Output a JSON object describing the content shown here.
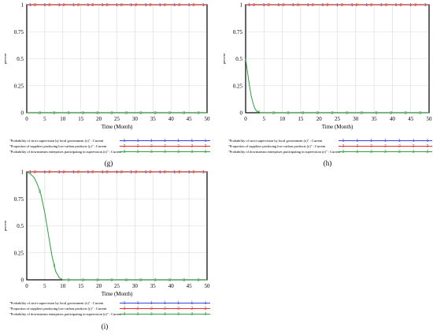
{
  "chart_data": [
    {
      "type": "line",
      "panel_label": "(g)",
      "xlabel": "Time (Month)",
      "ylabel": "percent",
      "xlim": [
        0,
        50
      ],
      "ylim": [
        0,
        1
      ],
      "x_ticks": [
        "0",
        "5",
        "10",
        "15",
        "20",
        "25",
        "30",
        "35",
        "40",
        "45",
        "50"
      ],
      "y_ticks": [
        "0",
        "0.25",
        "0.5",
        "0.75",
        "1"
      ],
      "grid": true,
      "legend_position": "bottom",
      "series": [
        {
          "name": "\"Probability of strict supervision by local government (x)\" : Current",
          "marker": "1",
          "color": "#3344dd",
          "x": [
            0,
            5,
            10,
            15,
            20,
            25,
            30,
            35,
            40,
            45,
            50
          ],
          "y": [
            1,
            1,
            1,
            1,
            1,
            1,
            1,
            1,
            1,
            1,
            1
          ]
        },
        {
          "name": "\"Proportion of suppliers producing low-carbon products (y)\" : Current",
          "marker": "2",
          "color": "#e03030",
          "x": [
            0,
            5,
            10,
            15,
            20,
            25,
            30,
            35,
            40,
            45,
            50
          ],
          "y": [
            1,
            1,
            1,
            1,
            1,
            1,
            1,
            1,
            1,
            1,
            1
          ]
        },
        {
          "name": "\"Probability of downstream enterprises participating in supervision (z)\" : Current",
          "marker": "3",
          "color": "#2e9e3e",
          "x": [
            0,
            5,
            10,
            15,
            20,
            25,
            30,
            35,
            40,
            45,
            50
          ],
          "y": [
            0,
            0,
            0,
            0,
            0,
            0,
            0,
            0,
            0,
            0,
            0
          ]
        }
      ]
    },
    {
      "type": "line",
      "panel_label": "(h)",
      "xlabel": "Time (Month)",
      "ylabel": "percent",
      "xlim": [
        0,
        50
      ],
      "ylim": [
        0,
        1
      ],
      "x_ticks": [
        "0",
        "5",
        "10",
        "15",
        "20",
        "25",
        "30",
        "35",
        "40",
        "45",
        "50"
      ],
      "y_ticks": [
        "0",
        "0.25",
        "0.5",
        "0.75",
        "1"
      ],
      "grid": true,
      "legend_position": "bottom",
      "series": [
        {
          "name": "\"Probability of strict supervision by local government (x)\" : Current",
          "marker": "1",
          "color": "#3344dd",
          "x": [
            0,
            5,
            10,
            15,
            20,
            25,
            30,
            35,
            40,
            45,
            50
          ],
          "y": [
            1,
            1,
            1,
            1,
            1,
            1,
            1,
            1,
            1,
            1,
            1
          ]
        },
        {
          "name": "\"Proportion of suppliers producing low-carbon products (y)\" : Current",
          "marker": "2",
          "color": "#e03030",
          "x": [
            0,
            5,
            10,
            15,
            20,
            25,
            30,
            35,
            40,
            45,
            50
          ],
          "y": [
            1,
            1,
            1,
            1,
            1,
            1,
            1,
            1,
            1,
            1,
            1
          ]
        },
        {
          "name": "\"Probability of downstream enterprises participating in supervision (z)\" : Current",
          "marker": "3",
          "color": "#2e9e3e",
          "x": [
            0,
            0.5,
            1,
            1.5,
            2,
            2.5,
            3,
            4,
            5,
            10,
            20,
            30,
            40,
            50
          ],
          "y": [
            0.5,
            0.38,
            0.26,
            0.16,
            0.09,
            0.04,
            0.015,
            0,
            0,
            0,
            0,
            0,
            0,
            0
          ]
        }
      ]
    },
    {
      "type": "line",
      "panel_label": "(i)",
      "xlabel": "Time (Month)",
      "ylabel": "percent",
      "xlim": [
        0,
        50
      ],
      "ylim": [
        0,
        1
      ],
      "x_ticks": [
        "0",
        "5",
        "10",
        "15",
        "20",
        "25",
        "30",
        "35",
        "40",
        "45",
        "50"
      ],
      "y_ticks": [
        "0",
        "0.25",
        "0.5",
        "0.75",
        "1"
      ],
      "grid": true,
      "legend_position": "bottom",
      "series": [
        {
          "name": "\"Probability of strict supervision by local government (x)\" : Current",
          "marker": "1",
          "color": "#3344dd",
          "x": [
            0,
            5,
            10,
            15,
            20,
            25,
            30,
            35,
            40,
            45,
            50
          ],
          "y": [
            1,
            1,
            1,
            1,
            1,
            1,
            1,
            1,
            1,
            1,
            1
          ]
        },
        {
          "name": "\"Proportion of suppliers producing low-carbon products (y)\" : Current",
          "marker": "2",
          "color": "#e03030",
          "x": [
            0,
            5,
            10,
            15,
            20,
            25,
            30,
            35,
            40,
            45,
            50
          ],
          "y": [
            1,
            1,
            1,
            1,
            1,
            1,
            1,
            1,
            1,
            1,
            1
          ]
        },
        {
          "name": "\"Probability of downstream enterprises participating in supervision (z)\" : Current",
          "marker": "3",
          "color": "#2e9e3e",
          "x": [
            0,
            1,
            2,
            3,
            4,
            5,
            6,
            7,
            8,
            9,
            10,
            12,
            20,
            30,
            40,
            50
          ],
          "y": [
            1,
            0.98,
            0.95,
            0.88,
            0.78,
            0.62,
            0.42,
            0.22,
            0.08,
            0.02,
            0,
            0,
            0,
            0,
            0,
            0
          ]
        }
      ]
    }
  ]
}
